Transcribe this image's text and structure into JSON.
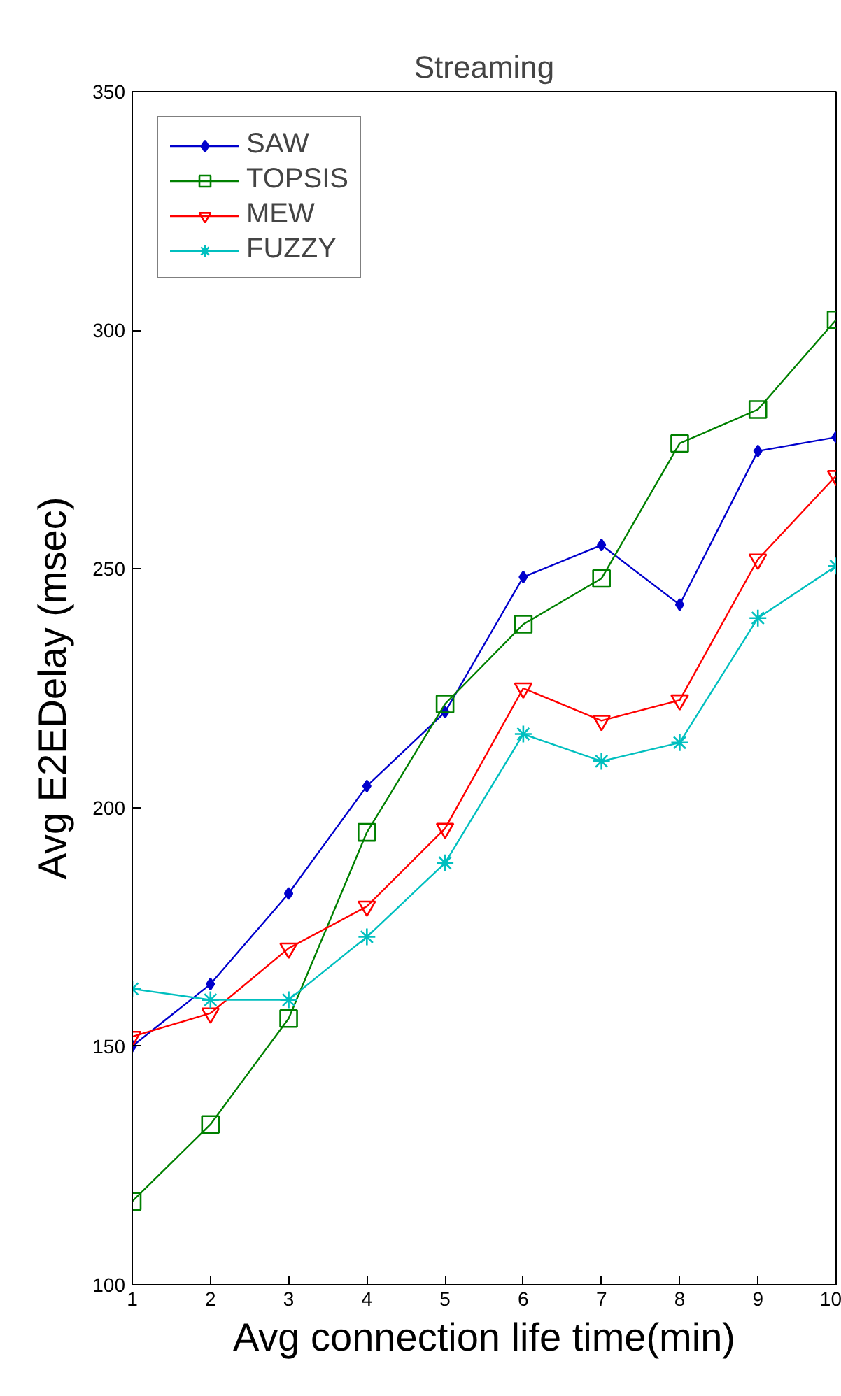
{
  "chart_data": {
    "type": "line",
    "title": "Streaming",
    "xlabel": "Avg connection life time(min)",
    "ylabel": "Avg E2EDelay (msec)",
    "x": [
      1,
      2,
      3,
      4,
      5,
      6,
      7,
      8,
      9,
      10
    ],
    "series": [
      {
        "name": "SAW",
        "color": "#0000cc",
        "marker": "diamond",
        "values": [
          150,
          163,
          182,
          204.5,
          220,
          248.3,
          255,
          242.5,
          274.7,
          277.6
        ]
      },
      {
        "name": "TOPSIS",
        "color": "#008000",
        "marker": "square",
        "values": [
          117.5,
          133.6,
          155.8,
          194.8,
          221.7,
          238.4,
          248,
          276.3,
          283.4,
          302.2
        ]
      },
      {
        "name": "MEW",
        "color": "#ff0000",
        "marker": "triangle",
        "values": [
          152,
          156.9,
          170.5,
          179.3,
          195.6,
          225,
          218.2,
          222.5,
          252,
          269.5
        ]
      },
      {
        "name": "FUZZY",
        "color": "#00bfbf",
        "marker": "cross",
        "values": [
          162,
          159.7,
          159.7,
          172.9,
          188.4,
          215.4,
          209.7,
          213.6,
          239.7,
          250.6
        ]
      }
    ],
    "xlim": [
      1,
      10
    ],
    "ylim": [
      100,
      350
    ],
    "xticks": [
      1,
      2,
      3,
      4,
      5,
      6,
      7,
      8,
      9,
      10
    ],
    "yticks": [
      100,
      150,
      200,
      250,
      300,
      350
    ],
    "grid": false,
    "legend": "top left",
    "line_style": "solid"
  }
}
